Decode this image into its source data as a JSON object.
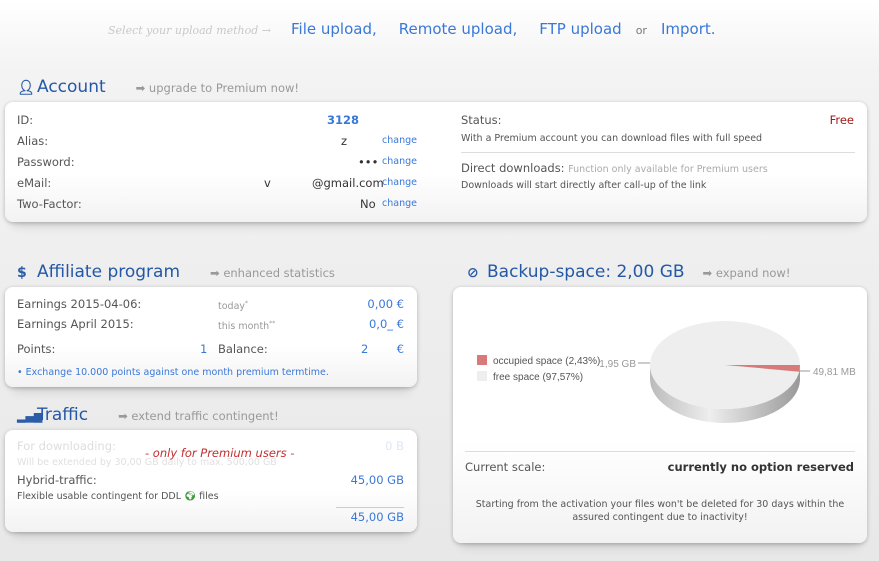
{
  "upload": {
    "hint": "Select your upload method →",
    "links": [
      "File upload,",
      "Remote upload,",
      "FTP upload"
    ],
    "or": "or",
    "import": "Import."
  },
  "account": {
    "title": "Account",
    "upgrade": "➡ upgrade to Premium now!",
    "icon": "user-icon",
    "rows": [
      {
        "label": "ID:",
        "value": "3128"
      },
      {
        "label": "Alias:",
        "value": "z",
        "change": "change"
      },
      {
        "label": "Password:",
        "value": "•••",
        "change": "change"
      },
      {
        "label": "eMail:",
        "value_prefix": "v",
        "value": "@gmail.com",
        "change": "change"
      },
      {
        "label": "Two-Factor:",
        "value": "No",
        "change": "change"
      }
    ],
    "status_label": "Status:",
    "status_value": "Free",
    "status_note": "With a Premium account you can download files with full speed",
    "direct_label": "Direct downloads:",
    "direct_hint": "Function only available for Premium users",
    "direct_note": "Downloads will start directly after call-up of the link"
  },
  "affiliate": {
    "title": "Affiliate program",
    "sub": "➡ enhanced statistics",
    "icon": "dollar-icon",
    "earn_today_label": "Earnings 2015-04-06:",
    "today": "today",
    "today_mark": "*",
    "earn_today": "0,00 €",
    "earn_month_label": "Earnings April 2015:",
    "month": "this month",
    "month_mark": "**",
    "earn_month": "0,0_ €",
    "points_label": "Points:",
    "points": "1",
    "balance_label": "Balance:",
    "balance_prefix": "2",
    "balance": "€",
    "exchange": "Exchange 10.000 points against one month premium termtime."
  },
  "traffic": {
    "title": "Traffic",
    "sub": "➡ extend traffic contingent!",
    "icon": "bar-chart-icon",
    "dl_label": "For downloading:",
    "dl_value": "0 B",
    "premium_only": "- only for Premium users -",
    "extend_note": "Will be extended by 30,00 GB daily to max. 500,00 GB",
    "hybrid_label": "Hybrid-traffic:",
    "hybrid_value": "45,00 GB",
    "flex_note": "Flexible usable contingent for DDL",
    "flex_suffix": "files",
    "total": "45,00 GB"
  },
  "backup": {
    "title": "Backup-space: 2,00 GB",
    "sub": "➡ expand now!",
    "icon": "check-circle-icon",
    "scale_label": "Current scale:",
    "scale_value": "currently no option reserved",
    "note": "Starting from the activation your files won't be deleted for 30 days within the assured contingent due to inactivity!"
  },
  "chart_data": {
    "type": "pie",
    "slices": [
      {
        "name": "occupied space (2,43%)",
        "value": 2.43,
        "label": "49,81 MB",
        "color": "#d97a7a"
      },
      {
        "name": "free space (97,57%)",
        "value": 97.57,
        "label": "1,95 GB",
        "color": "#eeeeee"
      }
    ],
    "legend": "left"
  }
}
